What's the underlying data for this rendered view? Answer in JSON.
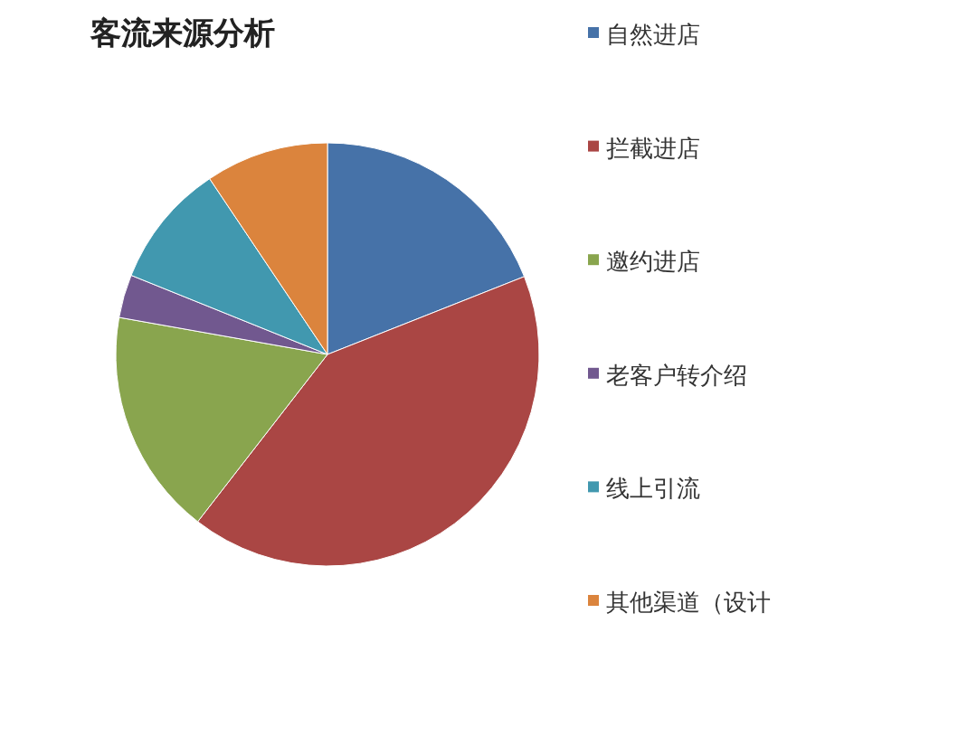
{
  "chart_data": {
    "type": "pie",
    "title": "客流来源分析",
    "categories": [
      "自然进店",
      "拦截进店",
      "邀约进店",
      "老客户转介绍",
      "线上引流",
      "其他渠道（设计"
    ],
    "values": [
      19,
      41.5,
      17.3,
      3.3,
      9.5,
      9.4
    ],
    "colors": [
      "#4672a8",
      "#aa4644",
      "#89a54e",
      "#71588f",
      "#4198af",
      "#db843d"
    ],
    "legend": "right"
  }
}
